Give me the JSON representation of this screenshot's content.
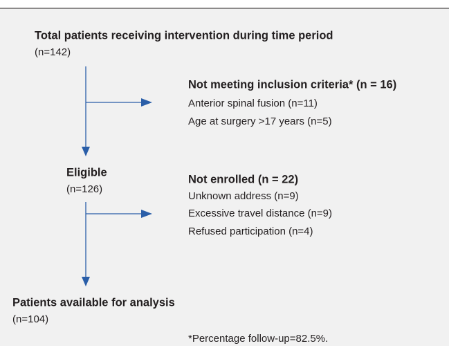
{
  "nodes": [
    {
      "title": "Total patients receiving intervention during time period",
      "count": "(n=142)"
    },
    {
      "title": "Not meeting inclusion criteria* (n = 16)",
      "items": [
        "Anterior spinal fusion (n=11)",
        "Age at surgery >17 years (n=5)"
      ]
    },
    {
      "title": "Eligible",
      "count": "(n=126)"
    },
    {
      "title": "Not enrolled (n = 22)",
      "items": [
        "Unknown address (n=9)",
        "Excessive travel distance (n=9)",
        "Refused participation (n=4)"
      ]
    },
    {
      "title": "Patients available for analysis",
      "count": "(n=104)"
    }
  ],
  "footnote": "*Percentage follow-up=82.5%."
}
